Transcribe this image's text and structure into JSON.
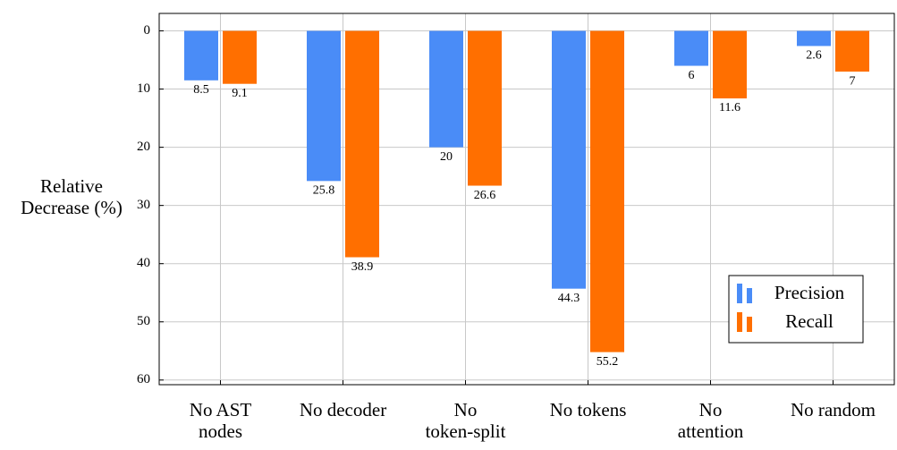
{
  "chart_data": {
    "type": "bar",
    "y_label": "Relative\nDecrease (%)",
    "categories": [
      "No AST\nnodes",
      "No decoder",
      "No\ntoken-split",
      "No tokens",
      "No\nattention",
      "No random"
    ],
    "series": [
      {
        "name": "Precision",
        "color": "#4a8cf7",
        "values": [
          8.5,
          25.8,
          20,
          44.3,
          6,
          2.6
        ]
      },
      {
        "name": "Recall",
        "color": "#ff6f00",
        "values": [
          9.1,
          38.9,
          26.6,
          55.2,
          11.6,
          7
        ]
      }
    ],
    "ylim": [
      -3,
      60.8
    ],
    "y_inverted": true,
    "yticks": [
      0,
      10,
      20,
      30,
      40,
      50,
      60
    ],
    "grid": true,
    "legend": "lower right"
  }
}
